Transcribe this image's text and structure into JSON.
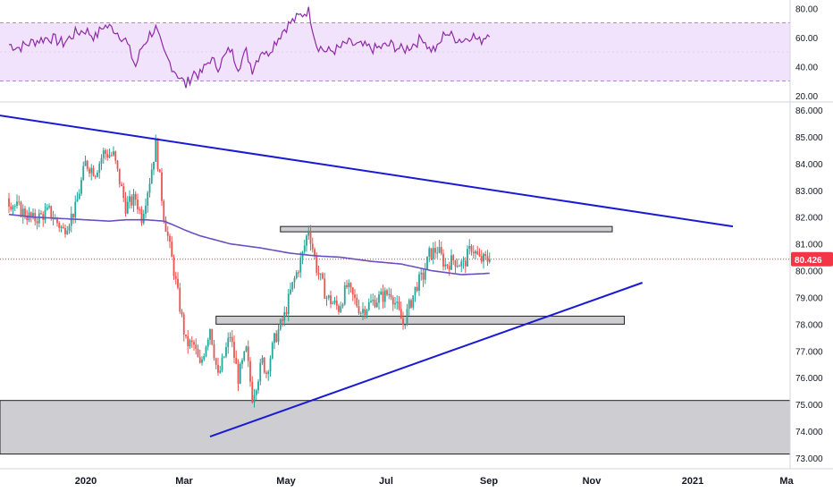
{
  "colors": {
    "up": "#26a69a",
    "down": "#ef5350",
    "ma": "#6a4fc3",
    "trendline": "#1a1ad4",
    "rsi": "#8e2aa8",
    "rsi_band": "#f1e3fb",
    "zone_fill": "#cdcdd2",
    "price_tag": "#f23645"
  },
  "chart_data": [
    {
      "type": "candlestick",
      "panel": "price",
      "ylim": [
        72.8,
        86.2
      ],
      "y_ticks": [
        "73.000",
        "74.000",
        "75.000",
        "76.000",
        "77.000",
        "78.000",
        "79.000",
        "80.000",
        "81.000",
        "82.000",
        "83.000",
        "84.000",
        "85.000",
        "86.000"
      ],
      "x_labels": [
        "2020",
        "Mar",
        "May",
        "Jul",
        "Sep",
        "Nov",
        "2021",
        "Ma"
      ],
      "last_price": "80.426",
      "ohlc_anchors": {
        "days": [
          0,
          12,
          20,
          27,
          33,
          38,
          43,
          47,
          52,
          58,
          63,
          66,
          70,
          73,
          77,
          82,
          88,
          92,
          95,
          100,
          104,
          110,
          114,
          118,
          121,
          123,
          126,
          128,
          132,
          137,
          140,
          146,
          149,
          153,
          158,
          164,
          168,
          175,
          182,
          190,
          196,
          203,
          206,
          209,
          213,
          217,
          221,
          226,
          230,
          234,
          239
        ],
        "close": [
          82.6,
          81.9,
          82.2,
          81.5,
          82.3,
          84.0,
          83.7,
          84.4,
          84.3,
          82.4,
          82.7,
          82.0,
          83.4,
          84.7,
          82.1,
          80.0,
          77.3,
          77.2,
          76.4,
          77.9,
          76.0,
          77.6,
          76.0,
          77.0,
          75.3,
          75.8,
          76.6,
          76.2,
          77.4,
          78.3,
          79.2,
          80.6,
          81.6,
          80.1,
          79.0,
          78.6,
          79.4,
          78.5,
          78.9,
          79.2,
          78.0,
          79.5,
          79.8,
          80.6,
          80.8,
          80.2,
          80.4,
          80.2,
          80.9,
          80.4,
          80.4
        ]
      },
      "moving_average": {
        "days": [
          0,
          12,
          25,
          38,
          50,
          58,
          68,
          77,
          82,
          88,
          95,
          110,
          125,
          140,
          153,
          165,
          180,
          195,
          210,
          225,
          239
        ],
        "values": [
          82.1,
          82.0,
          81.95,
          81.9,
          81.85,
          81.9,
          81.9,
          81.85,
          81.7,
          81.5,
          81.3,
          81.0,
          80.85,
          80.65,
          80.55,
          80.5,
          80.35,
          80.25,
          80.0,
          79.85,
          79.9
        ]
      },
      "trendlines": [
        {
          "from": [
            -5,
            85.8
          ],
          "to": [
            360,
            81.65
          ]
        },
        {
          "from": [
            100,
            73.8
          ],
          "to": [
            315,
            79.55
          ]
        }
      ],
      "zones": [
        {
          "from_day": 135,
          "to_day": 300,
          "low": 81.45,
          "high": 81.65
        },
        {
          "from_day": 103,
          "to_day": 306,
          "low": 78.0,
          "high": 78.3
        },
        {
          "from_day": -10,
          "to_day": 390,
          "low": 73.15,
          "high": 75.15
        }
      ]
    },
    {
      "type": "line",
      "panel": "rsi",
      "ylim": [
        18,
        82
      ],
      "y_ticks": [
        "20.00",
        "40.00",
        "60.00",
        "80.00"
      ],
      "bands": [
        30,
        70
      ],
      "rsi_anchors": {
        "days": [
          0,
          5,
          12,
          20,
          27,
          33,
          38,
          43,
          47,
          52,
          58,
          63,
          66,
          70,
          73,
          77,
          82,
          88,
          92,
          95,
          100,
          104,
          110,
          114,
          118,
          121,
          123,
          126,
          128,
          132,
          137,
          140,
          146,
          149,
          153,
          158,
          164,
          168,
          175,
          182,
          190,
          196,
          203,
          206,
          209,
          213,
          217,
          221,
          226,
          230,
          234,
          239
        ],
        "values": [
          55,
          53,
          57,
          60,
          56,
          63,
          65,
          60,
          68,
          66,
          58,
          40,
          53,
          62,
          66,
          49,
          38,
          27,
          36,
          34,
          45,
          40,
          52,
          40,
          50,
          38,
          44,
          52,
          48,
          56,
          66,
          70,
          76,
          79,
          55,
          50,
          52,
          56,
          54,
          52,
          55,
          51,
          57,
          60,
          52,
          52,
          64,
          60,
          58,
          62,
          57,
          64
        ]
      }
    }
  ]
}
